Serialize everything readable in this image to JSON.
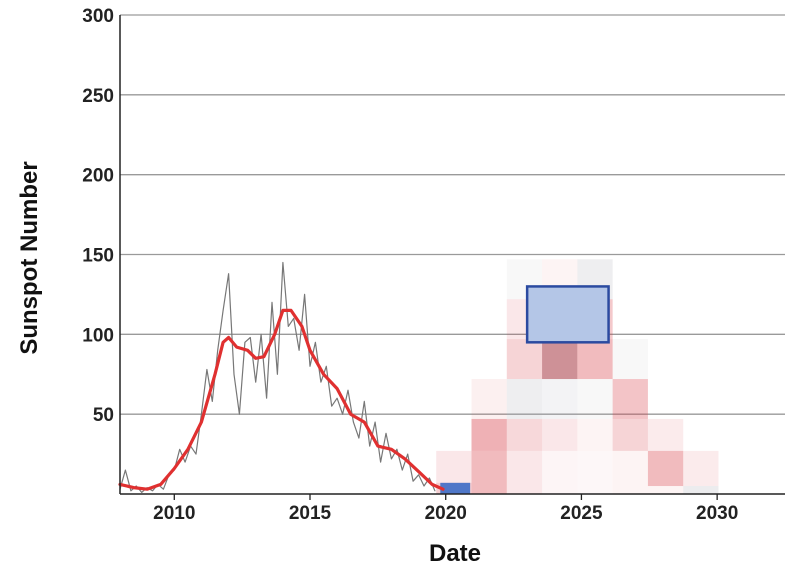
{
  "chart_data": {
    "type": "line",
    "xlabel": "Date",
    "ylabel": "Sunspot Number",
    "xlim": [
      2008,
      2032.5
    ],
    "ylim": [
      0,
      300
    ],
    "x_ticks": [
      2010,
      2015,
      2020,
      2025,
      2030
    ],
    "y_ticks": [
      50,
      100,
      150,
      200,
      250,
      300
    ],
    "grid": "horizontal",
    "series": [
      {
        "name": "",
        "style": "monthly",
        "color": "#777777",
        "x": [
          2008.0,
          2008.2,
          2008.4,
          2008.6,
          2008.8,
          2009.0,
          2009.2,
          2009.4,
          2009.6,
          2009.8,
          2010.0,
          2010.2,
          2010.4,
          2010.6,
          2010.8,
          2011.0,
          2011.2,
          2011.4,
          2011.6,
          2011.8,
          2012.0,
          2012.2,
          2012.4,
          2012.6,
          2012.8,
          2013.0,
          2013.2,
          2013.4,
          2013.6,
          2013.8,
          2014.0,
          2014.2,
          2014.4,
          2014.6,
          2014.8,
          2015.0,
          2015.2,
          2015.4,
          2015.6,
          2015.8,
          2016.0,
          2016.2,
          2016.4,
          2016.6,
          2016.8,
          2017.0,
          2017.2,
          2017.4,
          2017.6,
          2017.8,
          2018.0,
          2018.2,
          2018.4,
          2018.6,
          2018.8,
          2019.0,
          2019.2,
          2019.4,
          2019.6
        ],
        "y": [
          3,
          15,
          2,
          5,
          1,
          4,
          2,
          6,
          3,
          12,
          15,
          28,
          20,
          30,
          25,
          50,
          78,
          58,
          90,
          115,
          138,
          75,
          50,
          95,
          98,
          70,
          100,
          60,
          120,
          75,
          145,
          105,
          110,
          90,
          125,
          80,
          95,
          70,
          80,
          55,
          60,
          50,
          65,
          45,
          35,
          58,
          30,
          45,
          20,
          38,
          22,
          28,
          15,
          25,
          8,
          12,
          5,
          10,
          2
        ]
      },
      {
        "name": "",
        "style": "smoothed",
        "color": "#e03030",
        "x": [
          2008.0,
          2008.5,
          2009.0,
          2009.5,
          2010.0,
          2010.5,
          2011.0,
          2011.5,
          2011.8,
          2012.0,
          2012.3,
          2012.7,
          2013.0,
          2013.3,
          2013.7,
          2014.0,
          2014.3,
          2014.7,
          2015.0,
          2015.5,
          2016.0,
          2016.5,
          2017.0,
          2017.5,
          2018.0,
          2018.5,
          2019.0,
          2019.5,
          2019.9
        ],
        "y": [
          6,
          4,
          3,
          6,
          16,
          28,
          45,
          75,
          95,
          98,
          92,
          90,
          85,
          86,
          100,
          115,
          115,
          105,
          90,
          75,
          66,
          50,
          45,
          30,
          28,
          22,
          14,
          6,
          3
        ]
      }
    ],
    "highlight_blocks": [
      {
        "x": [
          2019.8,
          2020.9
        ],
        "y": [
          0,
          7
        ],
        "color": "#4f77c8"
      },
      {
        "x": [
          2023.0,
          2026.0
        ],
        "y": [
          95,
          130
        ],
        "fill": "#b4c6e7",
        "stroke": "#2b4aa0"
      }
    ],
    "probability_heatmap": {
      "cell_years": [
        2020.3,
        2021.6,
        2022.9,
        2024.2,
        2025.5,
        2026.8,
        2028.1,
        2029.4
      ],
      "bins": [
        [
          0,
          7,
          0.25,
          "red"
        ],
        [
          7,
          27,
          0.12,
          "red"
        ],
        [
          1,
          2,
          0,
          "red"
        ],
        [
          1,
          27,
          0.35,
          "red"
        ],
        [
          27,
          47,
          0.4,
          "red"
        ],
        [
          47,
          72,
          0.08,
          "red"
        ],
        [
          2,
          27,
          0.12,
          "red"
        ],
        [
          27,
          47,
          0.2,
          "red"
        ],
        [
          47,
          72,
          0.18,
          "gray"
        ],
        [
          72,
          97,
          0.22,
          "red"
        ],
        [
          97,
          122,
          0.12,
          "red"
        ],
        [
          122,
          147,
          0.08,
          "gray"
        ],
        [
          3,
          27,
          0.05,
          "red"
        ],
        [
          27,
          47,
          0.12,
          "red"
        ],
        [
          47,
          72,
          0.12,
          "gray"
        ],
        [
          72,
          97,
          0.55,
          "darkred"
        ],
        [
          97,
          122,
          0.35,
          "red"
        ],
        [
          122,
          147,
          0.06,
          "red"
        ],
        [
          4,
          27,
          0.04,
          "red"
        ],
        [
          27,
          47,
          0.06,
          "red"
        ],
        [
          47,
          72,
          0.08,
          "gray"
        ],
        [
          72,
          97,
          0.35,
          "red"
        ],
        [
          97,
          122,
          0.28,
          "red"
        ],
        [
          122,
          147,
          0.18,
          "gray"
        ],
        [
          5,
          27,
          0.06,
          "red"
        ],
        [
          27,
          47,
          0.22,
          "red"
        ],
        [
          47,
          72,
          0.3,
          "red"
        ],
        [
          72,
          97,
          0.08,
          "gray"
        ],
        [
          6,
          5,
          0.06,
          "red"
        ],
        [
          5,
          27,
          0.35,
          "red"
        ],
        [
          27,
          47,
          0.1,
          "red"
        ],
        [
          7,
          5,
          0.2,
          "gray"
        ],
        [
          5,
          27,
          0.1,
          "red"
        ]
      ]
    }
  }
}
